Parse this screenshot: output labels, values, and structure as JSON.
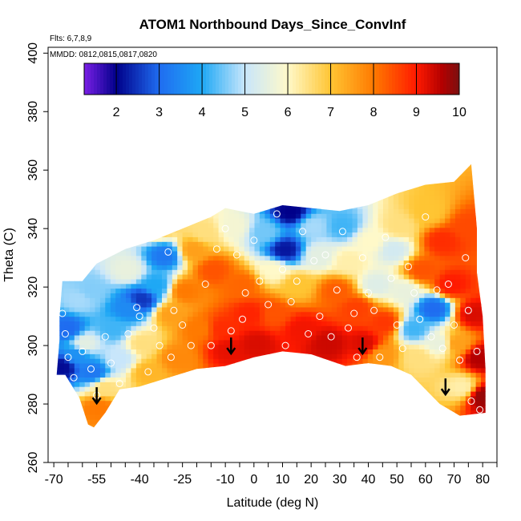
{
  "chart_data": {
    "type": "heatmap",
    "title": "ATOM1 Northbound Days_Since_ConvInf",
    "subtitle_flights": "Flts: 6,7,8,9",
    "subtitle_dates": "MMDD: 0812,0815,0817,0820",
    "xlabel": "Latitude (deg N)",
    "ylabel": "Theta (C)",
    "xlim": [
      -72,
      85
    ],
    "ylim": [
      260,
      402
    ],
    "x_ticks": [
      -70,
      -55,
      -40,
      -25,
      -10,
      0,
      10,
      20,
      30,
      40,
      50,
      60,
      70,
      80
    ],
    "y_ticks": [
      260,
      280,
      300,
      320,
      340,
      360,
      380,
      400
    ],
    "colorbar": {
      "range": [
        1.25,
        10
      ],
      "ticks": [
        2,
        3,
        4,
        5,
        6,
        7,
        8,
        9,
        10
      ],
      "colors": [
        "#7a1fe6",
        "#00008a",
        "#1f6cf0",
        "#1ea8f5",
        "#c8e6fb",
        "#fff9c9",
        "#ffc533",
        "#ff7a00",
        "#ff1a00",
        "#b30000",
        "#7a1010"
      ],
      "stops": [
        1.25,
        2,
        3,
        4,
        5,
        6,
        7,
        8,
        9,
        9.6,
        10
      ]
    },
    "boundary_top": [
      [
        -67,
        322
      ],
      [
        -60,
        322
      ],
      [
        -55,
        328
      ],
      [
        -45,
        333
      ],
      [
        -35,
        336
      ],
      [
        -25,
        340
      ],
      [
        -15,
        344
      ],
      [
        -10,
        347
      ],
      [
        0,
        345
      ],
      [
        10,
        348
      ],
      [
        20,
        347
      ],
      [
        30,
        346
      ],
      [
        40,
        348
      ],
      [
        50,
        352
      ],
      [
        60,
        355
      ],
      [
        70,
        356
      ],
      [
        76,
        362
      ],
      [
        78,
        340
      ],
      [
        78,
        325
      ],
      [
        80,
        310
      ],
      [
        81,
        292
      ],
      [
        81,
        277
      ]
    ],
    "boundary_bottom": [
      [
        81,
        277
      ],
      [
        72,
        276
      ],
      [
        65,
        280
      ],
      [
        60,
        285
      ],
      [
        55,
        290
      ],
      [
        48,
        293
      ],
      [
        40,
        294
      ],
      [
        32,
        293
      ],
      [
        20,
        297
      ],
      [
        10,
        298
      ],
      [
        0,
        296
      ],
      [
        -10,
        293
      ],
      [
        -20,
        292
      ],
      [
        -30,
        289
      ],
      [
        -40,
        286
      ],
      [
        -47,
        285
      ],
      [
        -52,
        277
      ],
      [
        -56,
        272
      ],
      [
        -58,
        273
      ],
      [
        -61,
        282
      ],
      [
        -66,
        290
      ],
      [
        -69,
        290
      ],
      [
        -68,
        302
      ],
      [
        -68,
        310
      ],
      [
        -67,
        322
      ]
    ],
    "field_points": [
      [
        -68,
        292,
        2.1
      ],
      [
        -66,
        305,
        3.0
      ],
      [
        -62,
        315,
        4.8
      ],
      [
        -60,
        300,
        5.5
      ],
      [
        -57,
        290,
        3.2
      ],
      [
        -55,
        278,
        8.0
      ],
      [
        -53,
        285,
        6.5
      ],
      [
        -50,
        305,
        4.2
      ],
      [
        -48,
        295,
        5.0
      ],
      [
        -45,
        312,
        3.5
      ],
      [
        -45,
        325,
        5.6
      ],
      [
        -40,
        315,
        2.5
      ],
      [
        -40,
        300,
        6.5
      ],
      [
        -38,
        290,
        7.2
      ],
      [
        -35,
        320,
        4.0
      ],
      [
        -32,
        330,
        3.2
      ],
      [
        -30,
        310,
        7.5
      ],
      [
        -28,
        295,
        7.8
      ],
      [
        -25,
        318,
        8.0
      ],
      [
        -22,
        332,
        7.5
      ],
      [
        -18,
        338,
        6.5
      ],
      [
        -15,
        325,
        8.4
      ],
      [
        -12,
        305,
        8.8
      ],
      [
        -10,
        298,
        9.2
      ],
      [
        -8,
        340,
        5.8
      ],
      [
        -5,
        320,
        8.2
      ],
      [
        -2,
        310,
        8.9
      ],
      [
        0,
        300,
        9.3
      ],
      [
        3,
        338,
        4.5
      ],
      [
        6,
        325,
        6.0
      ],
      [
        10,
        332,
        2.2
      ],
      [
        12,
        345,
        2.0
      ],
      [
        14,
        320,
        7.0
      ],
      [
        16,
        305,
        9.1
      ],
      [
        20,
        340,
        4.8
      ],
      [
        22,
        330,
        5.5
      ],
      [
        25,
        300,
        9.4
      ],
      [
        28,
        318,
        8.3
      ],
      [
        30,
        340,
        4.2
      ],
      [
        32,
        328,
        6.2
      ],
      [
        35,
        312,
        8.6
      ],
      [
        38,
        300,
        9.3
      ],
      [
        40,
        335,
        6.0
      ],
      [
        42,
        320,
        5.4
      ],
      [
        45,
        307,
        8.7
      ],
      [
        48,
        332,
        5.2
      ],
      [
        50,
        340,
        6.5
      ],
      [
        52,
        318,
        5.6
      ],
      [
        55,
        305,
        4.2
      ],
      [
        56,
        295,
        6.5
      ],
      [
        58,
        325,
        8.4
      ],
      [
        60,
        345,
        7.0
      ],
      [
        62,
        312,
        3.0
      ],
      [
        64,
        300,
        5.6
      ],
      [
        65,
        335,
        8.8
      ],
      [
        68,
        320,
        9.0
      ],
      [
        70,
        300,
        7.5
      ],
      [
        72,
        285,
        6.2
      ],
      [
        74,
        340,
        8.5
      ],
      [
        76,
        310,
        9.3
      ],
      [
        78,
        295,
        9.6
      ],
      [
        79,
        282,
        9.8
      ],
      [
        -58,
        318,
        4.6
      ],
      [
        -63,
        296,
        3.6
      ],
      [
        6,
        310,
        8.4
      ],
      [
        44,
        296,
        7.6
      ],
      [
        -20,
        305,
        8.0
      ],
      [
        -34,
        340,
        6.8
      ]
    ],
    "observations": [
      [
        -67,
        311
      ],
      [
        -66,
        304
      ],
      [
        -65,
        296
      ],
      [
        -63,
        289
      ],
      [
        -60,
        298
      ],
      [
        -57,
        292
      ],
      [
        -55,
        283
      ],
      [
        -52,
        303
      ],
      [
        -50,
        294
      ],
      [
        -47,
        287
      ],
      [
        -44,
        304
      ],
      [
        -41,
        313
      ],
      [
        -40,
        310
      ],
      [
        -37,
        291
      ],
      [
        -35,
        306
      ],
      [
        -33,
        300
      ],
      [
        -30,
        332
      ],
      [
        -29,
        296
      ],
      [
        -28,
        312
      ],
      [
        -25,
        307
      ],
      [
        -22,
        300
      ],
      [
        -19,
        289
      ],
      [
        -17,
        321
      ],
      [
        -15,
        300
      ],
      [
        -13,
        333
      ],
      [
        -10,
        340
      ],
      [
        -8,
        305
      ],
      [
        -6,
        331
      ],
      [
        -4,
        309
      ],
      [
        -3,
        318
      ],
      [
        0,
        336
      ],
      [
        2,
        322
      ],
      [
        5,
        314
      ],
      [
        8,
        345
      ],
      [
        10,
        326
      ],
      [
        11,
        300
      ],
      [
        13,
        315
      ],
      [
        15,
        322
      ],
      [
        17,
        339
      ],
      [
        19,
        304
      ],
      [
        21,
        329
      ],
      [
        23,
        310
      ],
      [
        25,
        331
      ],
      [
        27,
        303
      ],
      [
        29,
        319
      ],
      [
        31,
        339
      ],
      [
        33,
        306
      ],
      [
        35,
        311
      ],
      [
        36,
        296
      ],
      [
        38,
        330
      ],
      [
        40,
        318
      ],
      [
        42,
        312
      ],
      [
        44,
        296
      ],
      [
        46,
        337
      ],
      [
        48,
        323
      ],
      [
        50,
        307
      ],
      [
        52,
        299
      ],
      [
        54,
        327
      ],
      [
        56,
        318
      ],
      [
        58,
        309
      ],
      [
        60,
        344
      ],
      [
        62,
        303
      ],
      [
        64,
        319
      ],
      [
        66,
        299
      ],
      [
        68,
        321
      ],
      [
        70,
        307
      ],
      [
        72,
        295
      ],
      [
        74,
        330
      ],
      [
        75,
        312
      ],
      [
        76,
        281
      ],
      [
        78,
        298
      ],
      [
        79,
        278
      ]
    ],
    "arrows": [
      [
        -55,
        283
      ],
      [
        -8,
        300
      ],
      [
        38,
        300
      ],
      [
        67,
        286
      ]
    ]
  }
}
